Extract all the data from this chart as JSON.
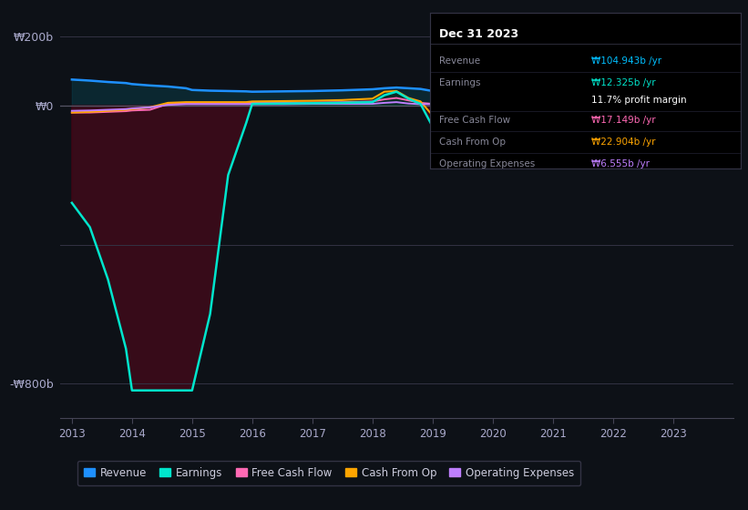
{
  "background_color": "#0d1117",
  "plot_bg_color": "#0d1117",
  "ylabel_200": "₩200b",
  "ylabel_0": "₩0",
  "ylabel_neg800": "-₩800b",
  "ylim": [
    -900,
    260
  ],
  "info_date": "Dec 31 2023",
  "info_rows": [
    {
      "label": "Revenue",
      "value": "₩104.943b /yr",
      "value_color": "#00bfff"
    },
    {
      "label": "Earnings",
      "value": "₩12.325b /yr",
      "value_color": "#00e5cc"
    },
    {
      "label": "",
      "value": "11.7% profit margin",
      "value_color": "#ffffff"
    },
    {
      "label": "Free Cash Flow",
      "value": "₩17.149b /yr",
      "value_color": "#ff69b4"
    },
    {
      "label": "Cash From Op",
      "value": "₩22.904b /yr",
      "value_color": "#ffa500"
    },
    {
      "label": "Operating Expenses",
      "value": "₩6.555b /yr",
      "value_color": "#bf7fff"
    }
  ],
  "legend": [
    {
      "label": "Revenue",
      "color": "#1e90ff"
    },
    {
      "label": "Earnings",
      "color": "#00e5cc"
    },
    {
      "label": "Free Cash Flow",
      "color": "#ff69b4"
    },
    {
      "label": "Cash From Op",
      "color": "#ffa500"
    },
    {
      "label": "Operating Expenses",
      "color": "#bf7fff"
    }
  ],
  "revenue_color": "#1e90ff",
  "earnings_color": "#00e5cc",
  "fcf_color": "#ff69b4",
  "cfo_color": "#ffa500",
  "opex_color": "#bf7fff",
  "fill_area_color": "#0a3d4a",
  "fill_neg_color": "#4a0010",
  "fill_pos_color": "#006644"
}
